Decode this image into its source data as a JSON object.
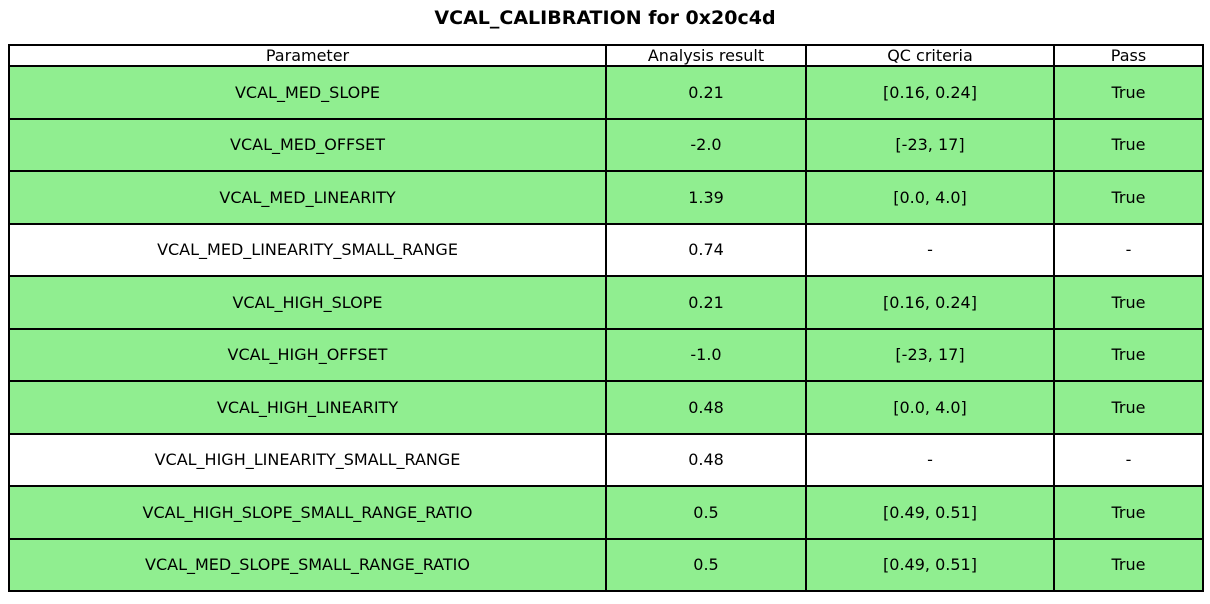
{
  "title": "VCAL_CALIBRATION for 0x20c4d",
  "colors": {
    "pass_row_green": "#90EE90",
    "neutral_row_white": "#FFFFFF",
    "border_black": "#000000"
  },
  "chart_data": {
    "type": "table",
    "title": "VCAL_CALIBRATION for 0x20c4d",
    "columns": [
      "Parameter",
      "Analysis result",
      "QC criteria",
      "Pass"
    ],
    "rows": [
      {
        "parameter": "VCAL_MED_SLOPE",
        "result": "0.21",
        "criteria": "[0.16, 0.24]",
        "pass": "True",
        "highlighted": true
      },
      {
        "parameter": "VCAL_MED_OFFSET",
        "result": "-2.0",
        "criteria": "[-23, 17]",
        "pass": "True",
        "highlighted": true
      },
      {
        "parameter": "VCAL_MED_LINEARITY",
        "result": "1.39",
        "criteria": "[0.0, 4.0]",
        "pass": "True",
        "highlighted": true
      },
      {
        "parameter": "VCAL_MED_LINEARITY_SMALL_RANGE",
        "result": "0.74",
        "criteria": "-",
        "pass": "-",
        "highlighted": false
      },
      {
        "parameter": "VCAL_HIGH_SLOPE",
        "result": "0.21",
        "criteria": "[0.16, 0.24]",
        "pass": "True",
        "highlighted": true
      },
      {
        "parameter": "VCAL_HIGH_OFFSET",
        "result": "-1.0",
        "criteria": "[-23, 17]",
        "pass": "True",
        "highlighted": true
      },
      {
        "parameter": "VCAL_HIGH_LINEARITY",
        "result": "0.48",
        "criteria": "[0.0, 4.0]",
        "pass": "True",
        "highlighted": true
      },
      {
        "parameter": "VCAL_HIGH_LINEARITY_SMALL_RANGE",
        "result": "0.48",
        "criteria": "-",
        "pass": "-",
        "highlighted": false
      },
      {
        "parameter": "VCAL_HIGH_SLOPE_SMALL_RANGE_RATIO",
        "result": "0.5",
        "criteria": "[0.49, 0.51]",
        "pass": "True",
        "highlighted": true
      },
      {
        "parameter": "VCAL_MED_SLOPE_SMALL_RANGE_RATIO",
        "result": "0.5",
        "criteria": "[0.49, 0.51]",
        "pass": "True",
        "highlighted": true
      }
    ]
  }
}
